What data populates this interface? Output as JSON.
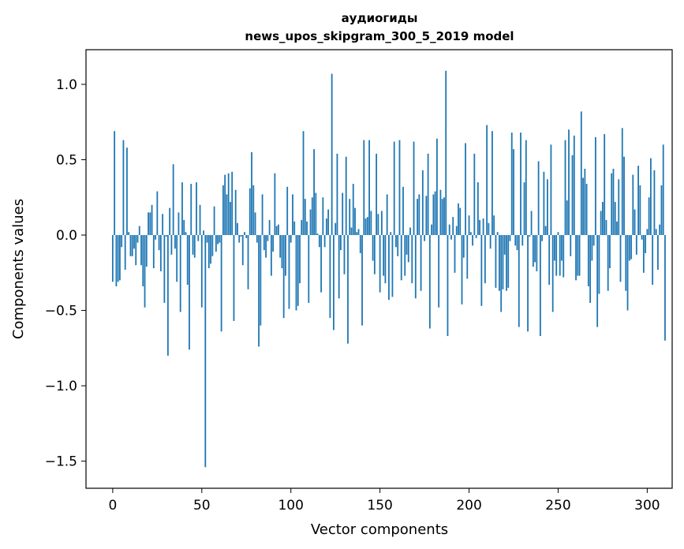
{
  "chart_data": {
    "type": "bar",
    "title": "аудиогиды",
    "subtitle": "news_upos_skipgram_300_5_2019 model",
    "xlabel": "Vector components",
    "ylabel": "Components values",
    "xlim": [
      -15,
      314
    ],
    "ylim": [
      -1.68,
      1.23
    ],
    "xticks": [
      0,
      50,
      100,
      150,
      200,
      250,
      300
    ],
    "yticks": [
      -1.5,
      -1.0,
      -0.5,
      0.0,
      0.5,
      1.0
    ],
    "ytick_labels": [
      "−1.5",
      "−1.0",
      "−0.5",
      "0.0",
      "0.5",
      "1.0"
    ],
    "grid": false,
    "bar_color": "#1f77b4",
    "values": [
      -0.31,
      0.69,
      -0.34,
      -0.31,
      -0.3,
      -0.08,
      0.63,
      -0.23,
      0.58,
      0.02,
      -0.14,
      -0.14,
      -0.09,
      -0.2,
      -0.05,
      0.06,
      -0.2,
      -0.34,
      -0.48,
      -0.21,
      0.15,
      0.15,
      0.2,
      -0.22,
      -0.03,
      0.29,
      -0.1,
      -0.24,
      0.14,
      -0.45,
      -0.01,
      -0.8,
      0.18,
      -0.13,
      0.47,
      -0.09,
      -0.31,
      0.15,
      -0.51,
      0.35,
      0.1,
      0.02,
      -0.33,
      -0.76,
      0.34,
      -0.13,
      -0.15,
      0.35,
      -0.04,
      0.2,
      -0.48,
      0.03,
      -1.54,
      -0.05,
      -0.22,
      -0.19,
      -0.14,
      0.19,
      -0.11,
      -0.06,
      -0.05,
      -0.64,
      0.33,
      0.4,
      0.27,
      0.41,
      0.22,
      0.42,
      -0.57,
      0.3,
      0.08,
      -0.05,
      -0.01,
      -0.2,
      0.02,
      -0.02,
      -0.36,
      0.31,
      0.55,
      0.33,
      0.15,
      -0.05,
      -0.74,
      -0.6,
      0.27,
      -0.1,
      -0.15,
      -0.04,
      0.1,
      -0.27,
      -0.11,
      0.41,
      0.06,
      0.07,
      -0.15,
      -0.22,
      -0.55,
      -0.27,
      0.32,
      -0.49,
      -0.05,
      0.27,
      0.09,
      -0.5,
      -0.47,
      -0.32,
      0.1,
      0.69,
      0.24,
      0.09,
      -0.45,
      0.17,
      0.25,
      0.57,
      0.28,
      0.01,
      -0.08,
      -0.38,
      0.25,
      -0.08,
      0.11,
      0.17,
      -0.55,
      1.07,
      -0.63,
      0.08,
      0.54,
      -0.42,
      -0.1,
      0.28,
      -0.26,
      0.52,
      -0.72,
      0.24,
      0.05,
      0.34,
      0.18,
      0.02,
      0.04,
      -0.12,
      -0.6,
      0.63,
      0.11,
      0.12,
      0.63,
      0.16,
      -0.17,
      -0.26,
      0.54,
      0.14,
      -0.38,
      0.16,
      -0.27,
      -0.32,
      0.27,
      -0.43,
      0.02,
      -0.41,
      0.62,
      -0.08,
      -0.14,
      0.63,
      -0.3,
      0.32,
      -0.27,
      -0.13,
      -0.18,
      0.05,
      -0.32,
      0.62,
      -0.42,
      0.24,
      0.27,
      -0.37,
      0.43,
      -0.04,
      0.26,
      0.54,
      -0.62,
      0.07,
      0.27,
      0.29,
      0.64,
      -0.48,
      0.3,
      0.24,
      0.25,
      1.09,
      -0.67,
      0.07,
      -0.03,
      0.12,
      -0.25,
      0.06,
      0.21,
      0.18,
      -0.46,
      -0.15,
      0.61,
      -0.29,
      0.13,
      0.02,
      -0.07,
      0.54,
      -0.02,
      0.35,
      0.1,
      -0.47,
      0.11,
      -0.32,
      0.73,
      0.08,
      -0.09,
      0.69,
      0.13,
      -0.35,
      0.02,
      -0.37,
      -0.51,
      -0.36,
      -0.13,
      -0.37,
      -0.35,
      -0.04,
      0.68,
      0.57,
      -0.07,
      -0.1,
      -0.61,
      0.68,
      -0.07,
      0.35,
      0.63,
      -0.64,
      -0.01,
      0.16,
      -0.21,
      -0.18,
      -0.24,
      0.49,
      -0.67,
      -0.04,
      0.42,
      0.06,
      0.37,
      -0.33,
      0.6,
      -0.51,
      -0.17,
      -0.27,
      0.02,
      -0.27,
      -0.17,
      -0.28,
      0.63,
      0.23,
      0.7,
      -0.14,
      0.53,
      0.66,
      -0.3,
      -0.27,
      -0.27,
      0.82,
      0.38,
      0.44,
      0.34,
      -0.34,
      -0.45,
      -0.17,
      -0.07,
      0.65,
      -0.61,
      -0.39,
      0.16,
      0.22,
      0.67,
      0.1,
      -0.37,
      -0.22,
      0.41,
      0.44,
      0.22,
      0.09,
      0.37,
      -0.31,
      0.71,
      0.52,
      -0.37,
      -0.5,
      -0.17,
      -0.16,
      0.4,
      0.17,
      -0.13,
      0.46,
      0.33,
      -0.03,
      -0.25,
      -0.12,
      0.04,
      0.25,
      0.51,
      -0.33,
      0.43,
      0.04,
      -0.23,
      0.07,
      0.33,
      0.6,
      -0.7
    ]
  }
}
